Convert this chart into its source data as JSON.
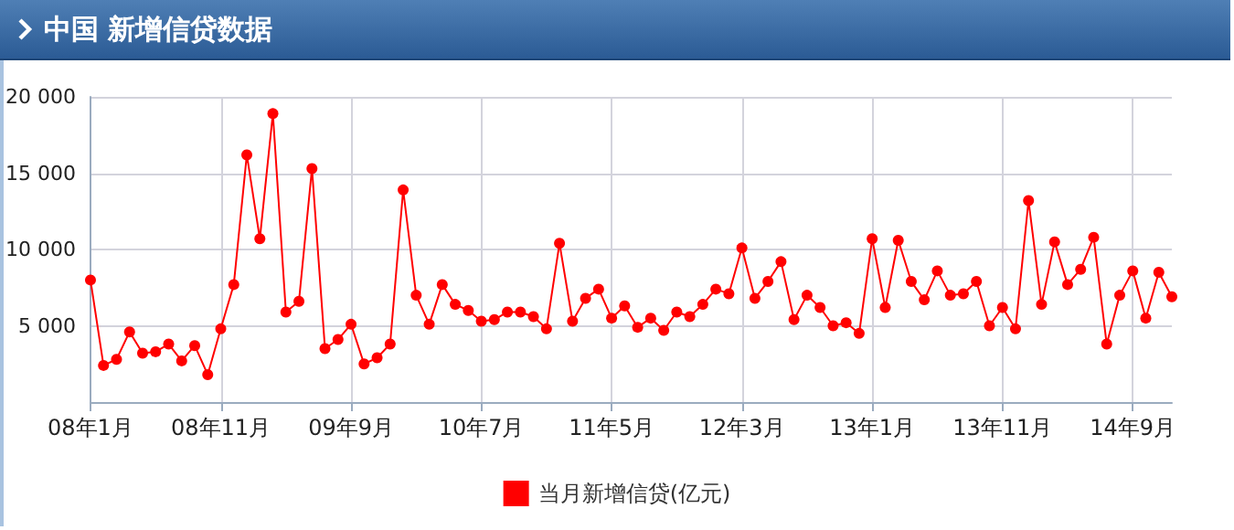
{
  "chart_data": {
    "type": "line",
    "title": "中国 新增信贷数据",
    "categories": [
      "08年1月",
      null,
      null,
      null,
      null,
      null,
      null,
      null,
      null,
      null,
      "08年11月",
      null,
      null,
      null,
      null,
      null,
      null,
      null,
      null,
      null,
      "09年9月",
      null,
      null,
      null,
      null,
      null,
      null,
      null,
      null,
      null,
      "10年7月",
      null,
      null,
      null,
      null,
      null,
      null,
      null,
      null,
      null,
      "11年5月",
      null,
      null,
      null,
      null,
      null,
      null,
      null,
      null,
      null,
      "12年3月",
      null,
      null,
      null,
      null,
      null,
      null,
      null,
      null,
      null,
      "13年1月",
      null,
      null,
      null,
      null,
      null,
      null,
      null,
      null,
      null,
      "13年11月",
      null,
      null,
      null,
      null,
      null,
      null,
      null,
      null,
      null,
      "14年9月",
      null,
      null,
      null
    ],
    "series": [
      {
        "name": "当月新增信贷(亿元)",
        "color": "#ff0000",
        "values": [
          8000,
          2400,
          2800,
          4600,
          3200,
          3300,
          3800,
          2700,
          3700,
          1800,
          4800,
          7700,
          16200,
          10700,
          18900,
          5900,
          6600,
          15300,
          3500,
          4100,
          5100,
          2500,
          2900,
          3800,
          13900,
          7000,
          5100,
          7700,
          6400,
          6000,
          5300,
          5400,
          5900,
          5900,
          5600,
          4800,
          10400,
          5300,
          6800,
          7400,
          5500,
          6300,
          4900,
          5500,
          4700,
          5900,
          5600,
          6400,
          7400,
          7100,
          10100,
          6800,
          7900,
          9200,
          5400,
          7000,
          6200,
          5000,
          5200,
          4500,
          10700,
          6200,
          10600,
          7900,
          6700,
          8600,
          7000,
          7100,
          7900,
          5000,
          6200,
          4800,
          13200,
          6400,
          10500,
          7700,
          8700,
          10800,
          3800,
          7000,
          8600,
          5500,
          8500,
          6900
        ]
      }
    ],
    "ylim": [
      0,
      20000
    ],
    "yticks": [
      {
        "value": 5000,
        "label": "5 000"
      },
      {
        "value": 10000,
        "label": "10 000"
      },
      {
        "value": 15000,
        "label": "15 000"
      },
      {
        "value": 20000,
        "label": "20 000"
      }
    ],
    "grid": true,
    "legend": "bottom",
    "marker": "circle",
    "line_style": "solid"
  }
}
